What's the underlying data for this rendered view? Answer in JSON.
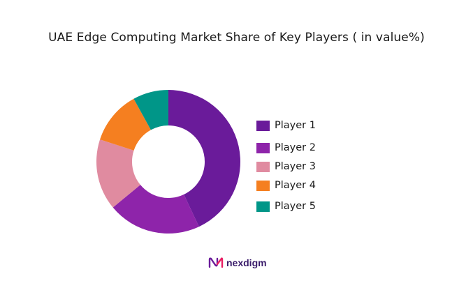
{
  "chart_data": {
    "type": "pie",
    "title": "UAE Edge Computing Market Share of Key Players ( in value%)",
    "donut": true,
    "categories": [
      "Player 1",
      "Player 2",
      "Player 3",
      "Player 4",
      "Player 5"
    ],
    "values": [
      43,
      21,
      16,
      12,
      8
    ],
    "colors": [
      "#6a1b9a",
      "#8e24aa",
      "#e08ba0",
      "#f57f20",
      "#009688"
    ],
    "legend_position": "right"
  },
  "brand": {
    "name": "nexdigm",
    "logo_icon": "nexdigm-logo-icon"
  }
}
